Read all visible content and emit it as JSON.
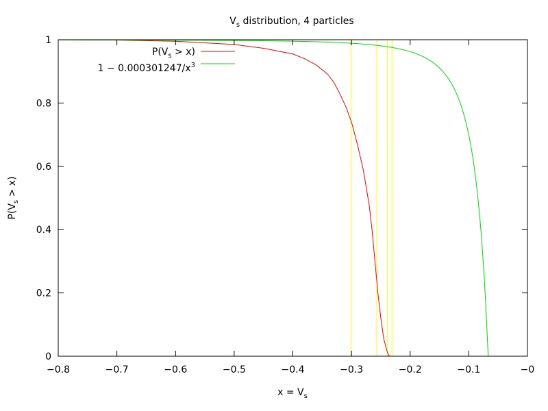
{
  "chart_data": {
    "type": "line",
    "title": {
      "main": "V",
      "sub": "s",
      "rest": " distribution, 4 particles"
    },
    "xlabel": {
      "main": "x = V",
      "sub": "s",
      "rest": ""
    },
    "ylabel": {
      "main": "P(V",
      "sub": "s",
      "rest": " > x)"
    },
    "xlim": [
      -0.8,
      0.0
    ],
    "ylim": [
      0.0,
      1.0
    ],
    "xticks": [
      -0.8,
      -0.7,
      -0.6,
      -0.5,
      -0.4,
      -0.3,
      -0.2,
      -0.1,
      0.0
    ],
    "xtick_labels": [
      "−0.8",
      "−0.7",
      "−0.6",
      "−0.5",
      "−0.4",
      "−0.3",
      "−0.2",
      "−0.1",
      "−0"
    ],
    "yticks": [
      0,
      0.2,
      0.4,
      0.6,
      0.8,
      1
    ],
    "ytick_labels": [
      "0",
      "0.2",
      "0.4",
      "0.6",
      "0.8",
      "1"
    ],
    "grid": false,
    "legend_position": "top-left",
    "series": [
      {
        "name": "P(V_s > x)",
        "legend": {
          "main": "P(V",
          "sub": "s",
          "rest": " > x)"
        },
        "color": "#ff0000",
        "x": [
          -0.8,
          -0.7,
          -0.6,
          -0.5,
          -0.45,
          -0.4,
          -0.38,
          -0.36,
          -0.34,
          -0.33,
          -0.32,
          -0.31,
          -0.3,
          -0.29,
          -0.28,
          -0.27,
          -0.265,
          -0.26,
          -0.255,
          -0.25,
          -0.245,
          -0.24,
          -0.238,
          -0.236,
          -0.234
        ],
        "y": [
          1.0,
          0.999,
          0.995,
          0.985,
          0.973,
          0.955,
          0.94,
          0.92,
          0.89,
          0.865,
          0.83,
          0.79,
          0.74,
          0.67,
          0.59,
          0.48,
          0.4,
          0.3,
          0.2,
          0.12,
          0.055,
          0.02,
          0.008,
          0.002,
          0.0
        ]
      },
      {
        "name": "1 − 0.000301247/x^3",
        "legend": {
          "main": "1 − 0.000301247/x",
          "sup": "3"
        },
        "color": "#00dd00",
        "function": {
          "kind": "one_plus_c_over_x_cubed",
          "c": 0.000301247,
          "xmin": -0.8,
          "xmax": -0.067
        }
      }
    ],
    "vertical_lines": {
      "color": "#ffff00",
      "x": [
        -0.301,
        -0.257,
        -0.239,
        -0.231
      ]
    }
  }
}
